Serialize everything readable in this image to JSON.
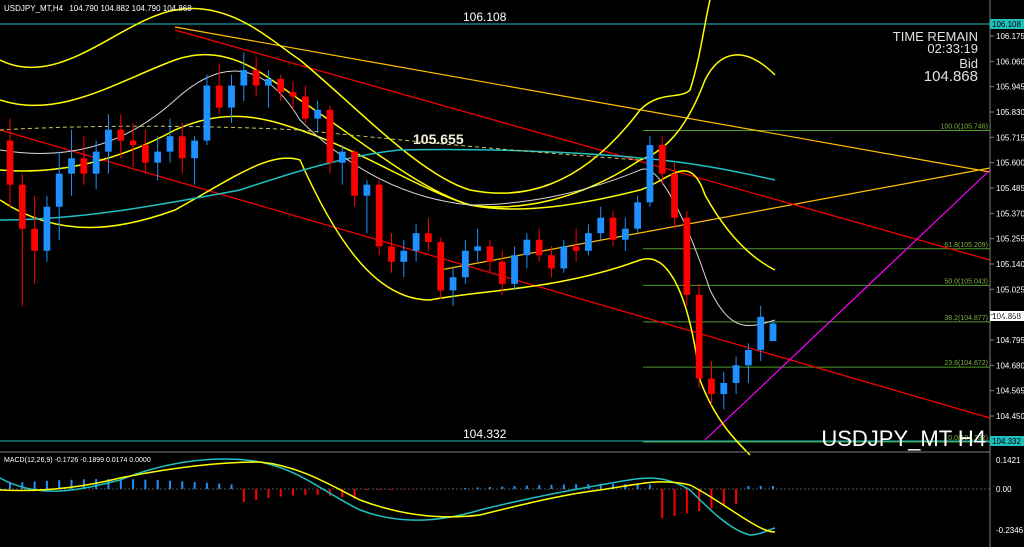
{
  "header": {
    "symbol_line": "USDJPY_MT,H4",
    "ohlc": "104.790 104.882 104.790 104.868"
  },
  "info": {
    "time_remain_label": "TIME REMAIN",
    "time_remain_value": "02:33:19",
    "bid_label": "Bid",
    "bid_value": "104.868"
  },
  "watermark": "USDJPY_MT H4",
  "annotations": {
    "high_label": "106.108",
    "mid_label": "105.655",
    "low_label": "104.332"
  },
  "price_axis": {
    "ticks": [
      "106.175",
      "106.060",
      "105.945",
      "105.830",
      "105.715",
      "105.600",
      "105.485",
      "105.370",
      "105.255",
      "105.140",
      "105.025",
      "104.910",
      "104.795",
      "104.680",
      "104.565",
      "104.450"
    ],
    "current_tag": "104.868",
    "high_tag": "106.108",
    "low_tag": "104.332"
  },
  "macd": {
    "label": "MACD(12,26,9) -0.1726 -0.1899 0.0174 0.0000",
    "ticks": [
      "0.1421",
      "0.00",
      "-0.2346"
    ]
  },
  "colors": {
    "background": "#000000",
    "up_candle": "#1e90ff",
    "down_candle": "#ff0000",
    "bollinger": "#ffff00",
    "channel": "#ff0000",
    "trend_gold": "#ffc000",
    "ma_cyan": "#20c0c0",
    "fib": "#4c9a2a",
    "magenta": "#ff00ff"
  },
  "chart_data": {
    "type": "candlestick",
    "symbol": "USDJPY_MT",
    "timeframe": "H4",
    "ylim": [
      104.33,
      106.2
    ],
    "candles": [
      [
        105.7,
        105.8,
        105.4,
        105.5
      ],
      [
        105.5,
        105.55,
        104.95,
        105.3
      ],
      [
        105.3,
        105.45,
        105.05,
        105.2
      ],
      [
        105.2,
        105.45,
        105.15,
        105.4
      ],
      [
        105.4,
        105.65,
        105.25,
        105.55
      ],
      [
        105.55,
        105.75,
        105.45,
        105.62
      ],
      [
        105.62,
        105.72,
        105.5,
        105.55
      ],
      [
        105.55,
        105.7,
        105.48,
        105.65
      ],
      [
        105.65,
        105.82,
        105.55,
        105.75
      ],
      [
        105.75,
        105.82,
        105.62,
        105.7
      ],
      [
        105.7,
        105.78,
        105.58,
        105.68
      ],
      [
        105.68,
        105.75,
        105.55,
        105.6
      ],
      [
        105.6,
        105.72,
        105.52,
        105.65
      ],
      [
        105.65,
        105.8,
        105.6,
        105.72
      ],
      [
        105.72,
        105.78,
        105.55,
        105.62
      ],
      [
        105.62,
        105.72,
        105.5,
        105.7
      ],
      [
        105.7,
        106.0,
        105.68,
        105.95
      ],
      [
        105.95,
        106.05,
        105.82,
        105.85
      ],
      [
        105.85,
        106.0,
        105.78,
        105.95
      ],
      [
        105.95,
        106.1,
        105.88,
        106.02
      ],
      [
        106.02,
        106.08,
        105.9,
        105.95
      ],
      [
        105.95,
        106.02,
        105.85,
        105.98
      ],
      [
        105.98,
        106.0,
        105.88,
        105.92
      ],
      [
        105.92,
        105.97,
        105.84,
        105.9
      ],
      [
        105.9,
        105.95,
        105.78,
        105.8
      ],
      [
        105.8,
        105.88,
        105.74,
        105.84
      ],
      [
        105.84,
        105.86,
        105.55,
        105.6
      ],
      [
        105.6,
        105.68,
        105.5,
        105.65
      ],
      [
        105.65,
        105.66,
        105.4,
        105.45
      ],
      [
        105.45,
        105.52,
        105.28,
        105.5
      ],
      [
        105.5,
        105.52,
        105.18,
        105.22
      ],
      [
        105.22,
        105.28,
        105.1,
        105.15
      ],
      [
        105.15,
        105.25,
        105.08,
        105.2
      ],
      [
        105.2,
        105.32,
        105.15,
        105.28
      ],
      [
        105.28,
        105.35,
        105.2,
        105.24
      ],
      [
        105.24,
        105.26,
        104.98,
        105.02
      ],
      [
        105.02,
        105.12,
        104.95,
        105.08
      ],
      [
        105.08,
        105.25,
        105.05,
        105.2
      ],
      [
        105.2,
        105.3,
        105.15,
        105.22
      ],
      [
        105.22,
        105.25,
        105.1,
        105.15
      ],
      [
        105.15,
        105.2,
        105.0,
        105.05
      ],
      [
        105.05,
        105.22,
        105.02,
        105.18
      ],
      [
        105.18,
        105.28,
        105.12,
        105.25
      ],
      [
        105.25,
        105.3,
        105.15,
        105.18
      ],
      [
        105.18,
        105.22,
        105.08,
        105.12
      ],
      [
        105.12,
        105.25,
        105.1,
        105.22
      ],
      [
        105.22,
        105.3,
        105.15,
        105.2
      ],
      [
        105.2,
        105.32,
        105.18,
        105.28
      ],
      [
        105.28,
        105.4,
        105.25,
        105.35
      ],
      [
        105.35,
        105.38,
        105.22,
        105.25
      ],
      [
        105.25,
        105.35,
        105.2,
        105.3
      ],
      [
        105.3,
        105.45,
        105.28,
        105.42
      ],
      [
        105.42,
        105.72,
        105.4,
        105.68
      ],
      [
        105.68,
        105.72,
        105.5,
        105.55
      ],
      [
        105.55,
        105.6,
        105.3,
        105.35
      ],
      [
        105.35,
        105.38,
        104.95,
        105.0
      ],
      [
        105.0,
        105.05,
        104.58,
        104.62
      ],
      [
        104.62,
        104.7,
        104.5,
        104.55
      ],
      [
        104.55,
        104.65,
        104.48,
        104.6
      ],
      [
        104.6,
        104.72,
        104.55,
        104.68
      ],
      [
        104.68,
        104.78,
        104.6,
        104.75
      ],
      [
        104.75,
        104.95,
        104.7,
        104.9
      ],
      [
        104.79,
        104.88,
        104.79,
        104.87
      ]
    ],
    "levels": [
      106.108,
      105.655,
      104.332
    ],
    "fibonacci": {
      "levels": [
        {
          "label": "100.0(105.746)",
          "price": 105.746
        },
        {
          "label": "61.8(105.209)",
          "price": 105.209
        },
        {
          "label": "50.0(105.043)",
          "price": 105.043
        },
        {
          "label": "38.2(104.877)",
          "price": 104.877
        },
        {
          "label": "23.6(104.672)",
          "price": 104.672
        },
        {
          "label": "0.0(104.332)",
          "price": 104.332
        }
      ]
    },
    "macd": {
      "params": "12,26,9",
      "main": -0.1726,
      "signal": -0.1899,
      "hist": 0.0174,
      "ylim": [
        -0.2346,
        0.1421
      ]
    }
  }
}
